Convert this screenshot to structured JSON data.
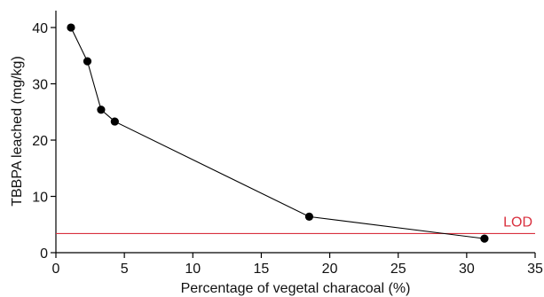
{
  "chart_data": {
    "type": "line",
    "title": "",
    "xlabel": "Percentage of vegetal characoal (%)",
    "ylabel": "TBBPA leached (mg/kg)",
    "xlim": [
      0,
      35
    ],
    "ylim": [
      0,
      43
    ],
    "xticks": [
      0,
      5,
      10,
      15,
      20,
      25,
      30,
      35
    ],
    "yticks": [
      0,
      10,
      20,
      30,
      40
    ],
    "grid": false,
    "series": [
      {
        "x": [
          1.1,
          2.3,
          3.3,
          4.3,
          18.5,
          31.3
        ],
        "y": [
          40.0,
          34.0,
          25.4,
          23.3,
          6.4,
          2.5
        ],
        "marker": "circle",
        "color": "#000000"
      }
    ],
    "reference_lines": [
      {
        "label": "LOD",
        "y": 3.4,
        "color": "#d9303e"
      }
    ]
  }
}
